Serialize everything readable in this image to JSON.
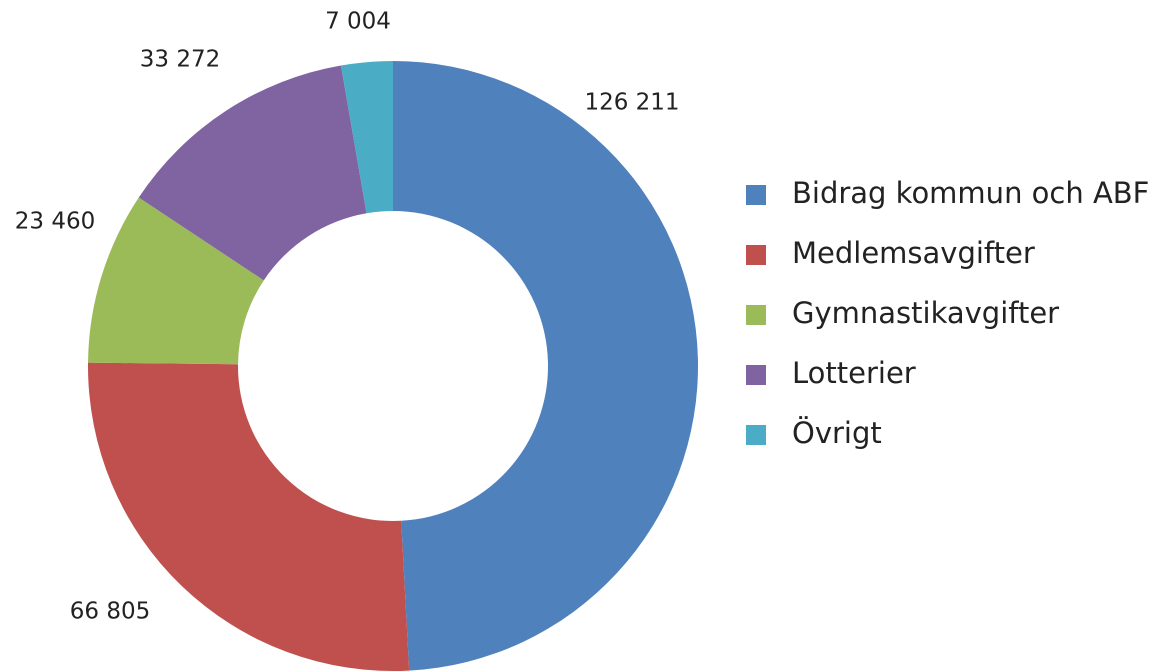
{
  "chart_data": {
    "type": "donut",
    "categories": [
      "Bidrag kommun och ABF",
      "Medlemsavgifter",
      "Gymnastikavgifter",
      "Lotterier",
      "Övrigt"
    ],
    "values": [
      126211,
      66805,
      23460,
      33272,
      7004
    ],
    "value_labels": [
      "126 211",
      "66 805",
      "23 460",
      "33 272",
      "7 004"
    ],
    "colors": [
      "#4f81bd",
      "#c0504d",
      "#9bbb59",
      "#8064a2",
      "#4bacc6"
    ],
    "legend": "right"
  }
}
